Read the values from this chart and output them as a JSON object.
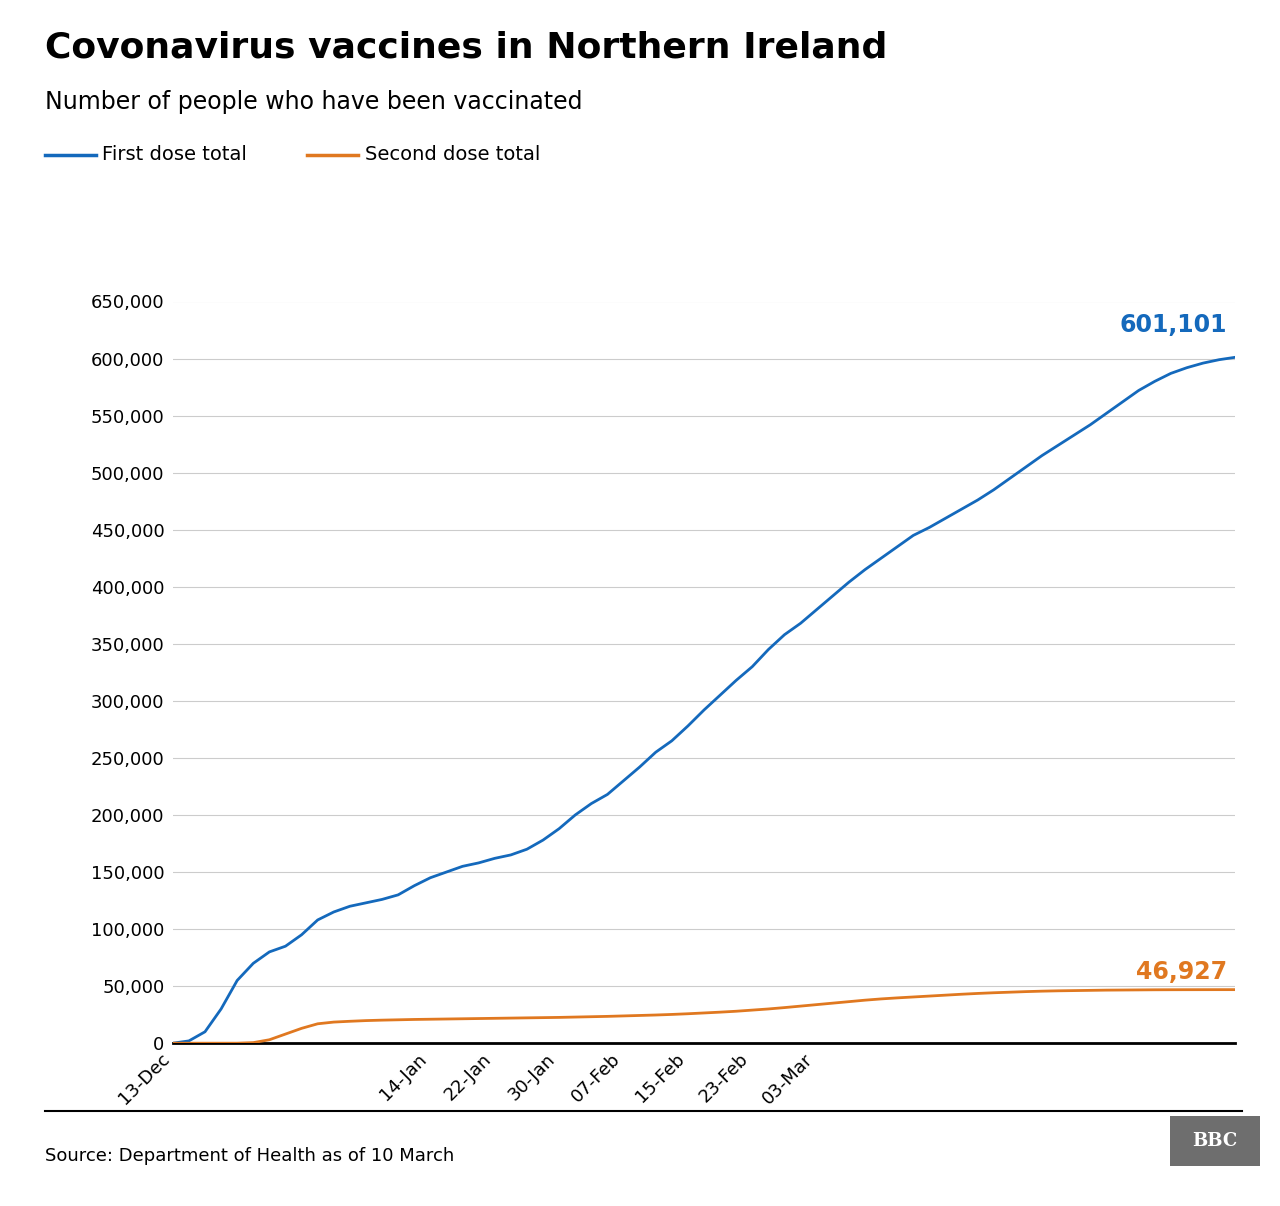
{
  "title": "Covonavirus vaccines in Northern Ireland",
  "subtitle": "Number of people who have been vaccinated",
  "source": "Source: Department of Health as of 10 March",
  "first_dose_label": "First dose total",
  "second_dose_label": "Second dose total",
  "first_dose_color": "#1469BC",
  "second_dose_color": "#E07820",
  "first_dose_final": "601,101",
  "second_dose_final": "46,927",
  "background_color": "#ffffff",
  "ylim": [
    0,
    650000
  ],
  "yticks": [
    0,
    50000,
    100000,
    150000,
    200000,
    250000,
    300000,
    350000,
    400000,
    450000,
    500000,
    550000,
    600000,
    650000
  ],
  "x_tick_labels": [
    "13-Dec",
    "14-Jan",
    "22-Jan",
    "30-Jan",
    "07-Feb",
    "15-Feb",
    "23-Feb",
    "03-Mar"
  ],
  "first_dose_data": [
    [
      0,
      0
    ],
    [
      2,
      2000
    ],
    [
      4,
      10000
    ],
    [
      6,
      30000
    ],
    [
      8,
      55000
    ],
    [
      10,
      70000
    ],
    [
      12,
      80000
    ],
    [
      14,
      85000
    ],
    [
      16,
      95000
    ],
    [
      18,
      108000
    ],
    [
      20,
      115000
    ],
    [
      22,
      120000
    ],
    [
      24,
      123000
    ],
    [
      26,
      126000
    ],
    [
      28,
      130000
    ],
    [
      30,
      138000
    ],
    [
      32,
      145000
    ],
    [
      34,
      150000
    ],
    [
      36,
      155000
    ],
    [
      38,
      158000
    ],
    [
      40,
      162000
    ],
    [
      42,
      165000
    ],
    [
      44,
      170000
    ],
    [
      46,
      178000
    ],
    [
      48,
      188000
    ],
    [
      50,
      200000
    ],
    [
      52,
      210000
    ],
    [
      54,
      218000
    ],
    [
      56,
      230000
    ],
    [
      58,
      242000
    ],
    [
      60,
      255000
    ],
    [
      62,
      265000
    ],
    [
      64,
      278000
    ],
    [
      66,
      292000
    ],
    [
      68,
      305000
    ],
    [
      70,
      318000
    ],
    [
      72,
      330000
    ],
    [
      74,
      345000
    ],
    [
      76,
      358000
    ],
    [
      78,
      368000
    ],
    [
      80,
      380000
    ],
    [
      82,
      392000
    ],
    [
      84,
      404000
    ],
    [
      86,
      415000
    ],
    [
      88,
      425000
    ],
    [
      90,
      435000
    ],
    [
      92,
      445000
    ],
    [
      94,
      452000
    ],
    [
      96,
      460000
    ],
    [
      98,
      468000
    ],
    [
      100,
      476000
    ],
    [
      102,
      485000
    ],
    [
      104,
      495000
    ],
    [
      106,
      505000
    ],
    [
      108,
      515000
    ],
    [
      110,
      524000
    ],
    [
      112,
      533000
    ],
    [
      114,
      542000
    ],
    [
      116,
      552000
    ],
    [
      118,
      562000
    ],
    [
      120,
      572000
    ],
    [
      122,
      580000
    ],
    [
      124,
      587000
    ],
    [
      126,
      592000
    ],
    [
      128,
      596000
    ],
    [
      130,
      599000
    ],
    [
      132,
      601101
    ]
  ],
  "second_dose_data": [
    [
      0,
      0
    ],
    [
      8,
      0
    ],
    [
      10,
      500
    ],
    [
      12,
      3000
    ],
    [
      14,
      8000
    ],
    [
      16,
      13000
    ],
    [
      18,
      17000
    ],
    [
      20,
      18500
    ],
    [
      22,
      19200
    ],
    [
      24,
      19800
    ],
    [
      26,
      20200
    ],
    [
      28,
      20500
    ],
    [
      30,
      20800
    ],
    [
      32,
      21000
    ],
    [
      34,
      21200
    ],
    [
      36,
      21400
    ],
    [
      38,
      21600
    ],
    [
      40,
      21800
    ],
    [
      42,
      22000
    ],
    [
      44,
      22200
    ],
    [
      46,
      22400
    ],
    [
      48,
      22600
    ],
    [
      50,
      22900
    ],
    [
      52,
      23200
    ],
    [
      54,
      23500
    ],
    [
      56,
      23900
    ],
    [
      58,
      24300
    ],
    [
      60,
      24700
    ],
    [
      62,
      25200
    ],
    [
      64,
      25800
    ],
    [
      66,
      26500
    ],
    [
      68,
      27200
    ],
    [
      70,
      28000
    ],
    [
      72,
      29000
    ],
    [
      74,
      30000
    ],
    [
      76,
      31200
    ],
    [
      78,
      32500
    ],
    [
      80,
      33800
    ],
    [
      82,
      35100
    ],
    [
      84,
      36400
    ],
    [
      86,
      37700
    ],
    [
      88,
      38800
    ],
    [
      90,
      39700
    ],
    [
      92,
      40500
    ],
    [
      94,
      41300
    ],
    [
      96,
      42100
    ],
    [
      98,
      42900
    ],
    [
      100,
      43600
    ],
    [
      102,
      44200
    ],
    [
      104,
      44700
    ],
    [
      106,
      45200
    ],
    [
      108,
      45600
    ],
    [
      110,
      45900
    ],
    [
      112,
      46100
    ],
    [
      114,
      46300
    ],
    [
      116,
      46500
    ],
    [
      118,
      46600
    ],
    [
      120,
      46700
    ],
    [
      122,
      46800
    ],
    [
      124,
      46850
    ],
    [
      126,
      46880
    ],
    [
      128,
      46900
    ],
    [
      130,
      46920
    ],
    [
      132,
      46927
    ]
  ],
  "x_tick_positions": [
    0,
    32,
    40,
    48,
    56,
    64,
    72,
    80
  ],
  "x_max": 132
}
